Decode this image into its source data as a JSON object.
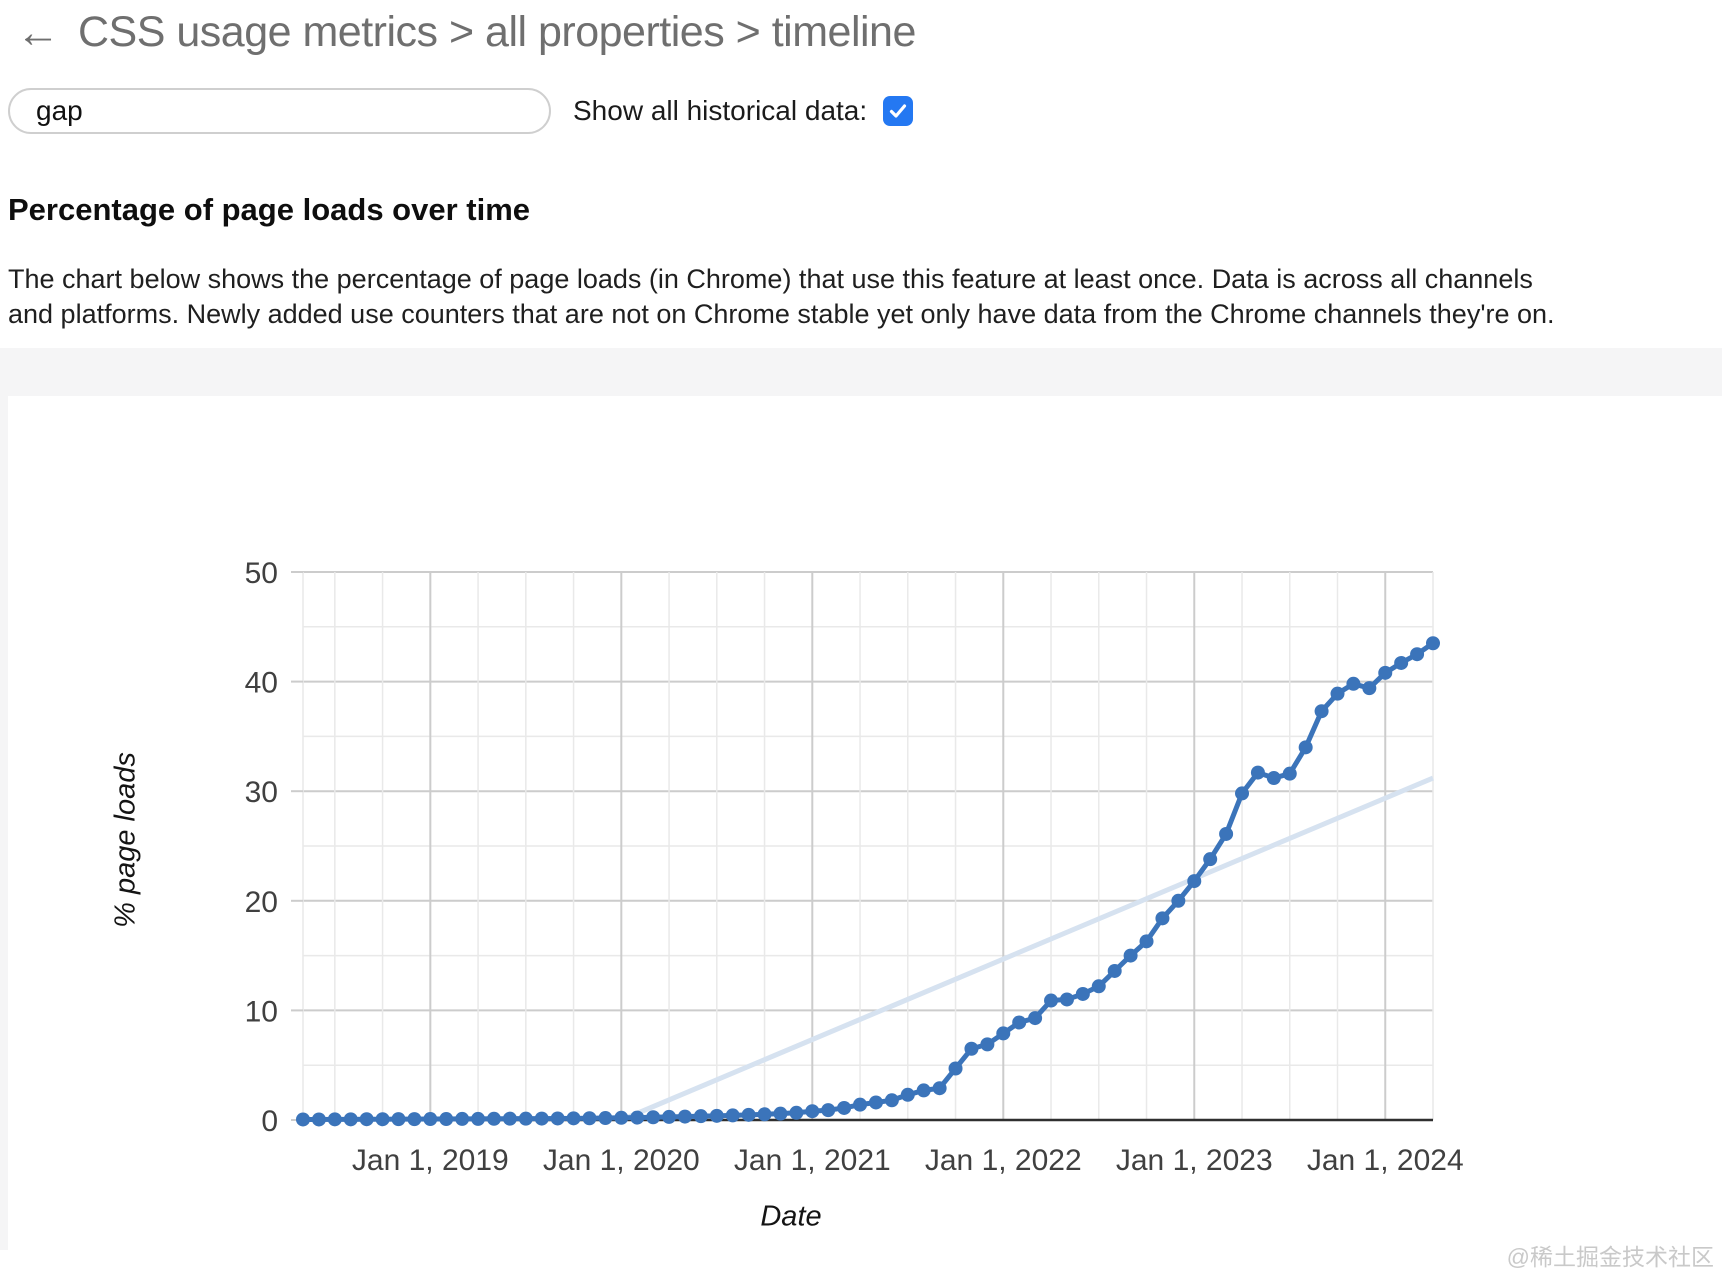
{
  "header": {
    "back_arrow": "←",
    "title": "CSS usage metrics > all properties > timeline"
  },
  "controls": {
    "search_value": "gap",
    "checkbox_label": "Show all historical data:",
    "checkbox_checked": true
  },
  "section": {
    "heading": "Percentage of page loads over time",
    "description": "The chart below shows the percentage of page loads (in Chrome) that use this feature at least once. Data is across all channels and platforms. Newly added use counters that are not on Chrome stable yet only have data from the Chrome channels they're on."
  },
  "watermark": "@稀土掘金技术社区",
  "colors": {
    "series": "#3b74ba",
    "trend": "#d6e2f0",
    "grid_major": "#cccccc",
    "grid_minor": "#e9e9e9",
    "axis": "#2f2f2f",
    "tick_text": "#404040",
    "checkbox": "#2478f2"
  },
  "chart_data": {
    "type": "line",
    "title": "",
    "xlabel": "Date",
    "ylabel": "% page loads",
    "ylim": [
      0,
      50
    ],
    "y_major_ticks": [
      0,
      10,
      20,
      30,
      40,
      50
    ],
    "y_minor_step": 5,
    "grid": true,
    "legend": "none",
    "x_start_month": "2018-05",
    "x_end_month": "2024-04",
    "x_minor_start": "2018-07",
    "x_minor_step_months": 3,
    "x_ticks": [
      {
        "label": "Jan 1, 2019",
        "month": "2019-01"
      },
      {
        "label": "Jan 1, 2020",
        "month": "2020-01"
      },
      {
        "label": "Jan 1, 2021",
        "month": "2021-01"
      },
      {
        "label": "Jan 1, 2022",
        "month": "2022-01"
      },
      {
        "label": "Jan 1, 2023",
        "month": "2023-01"
      },
      {
        "label": "Jan 1, 2024",
        "month": "2024-01"
      }
    ],
    "series": [
      {
        "name": "% page loads (gap)",
        "color": "#3b74ba",
        "style": "line+dots",
        "monthly_values": [
          0.05,
          0.05,
          0.06,
          0.06,
          0.07,
          0.07,
          0.08,
          0.08,
          0.09,
          0.09,
          0.1,
          0.1,
          0.11,
          0.12,
          0.12,
          0.13,
          0.14,
          0.15,
          0.16,
          0.18,
          0.2,
          0.22,
          0.25,
          0.28,
          0.31,
          0.35,
          0.38,
          0.42,
          0.47,
          0.52,
          0.58,
          0.66,
          0.8,
          0.9,
          1.1,
          1.4,
          1.6,
          1.8,
          2.3,
          2.7,
          2.9,
          4.7,
          6.5,
          6.9,
          7.9,
          8.9,
          9.3,
          10.9,
          11.0,
          11.5,
          12.2,
          13.6,
          15.0,
          16.3,
          18.4,
          20.0,
          21.8,
          23.8,
          26.1,
          29.8,
          31.7,
          31.2,
          31.6,
          34.0,
          37.3,
          38.9,
          39.8,
          39.4,
          40.8,
          41.7,
          42.5,
          43.5
        ]
      },
      {
        "name": "trend",
        "color": "#d6e2f0",
        "style": "line",
        "points": [
          {
            "month": "2020-01",
            "value": 0
          },
          {
            "month": "2024-04",
            "value": 31.2
          }
        ]
      }
    ]
  }
}
